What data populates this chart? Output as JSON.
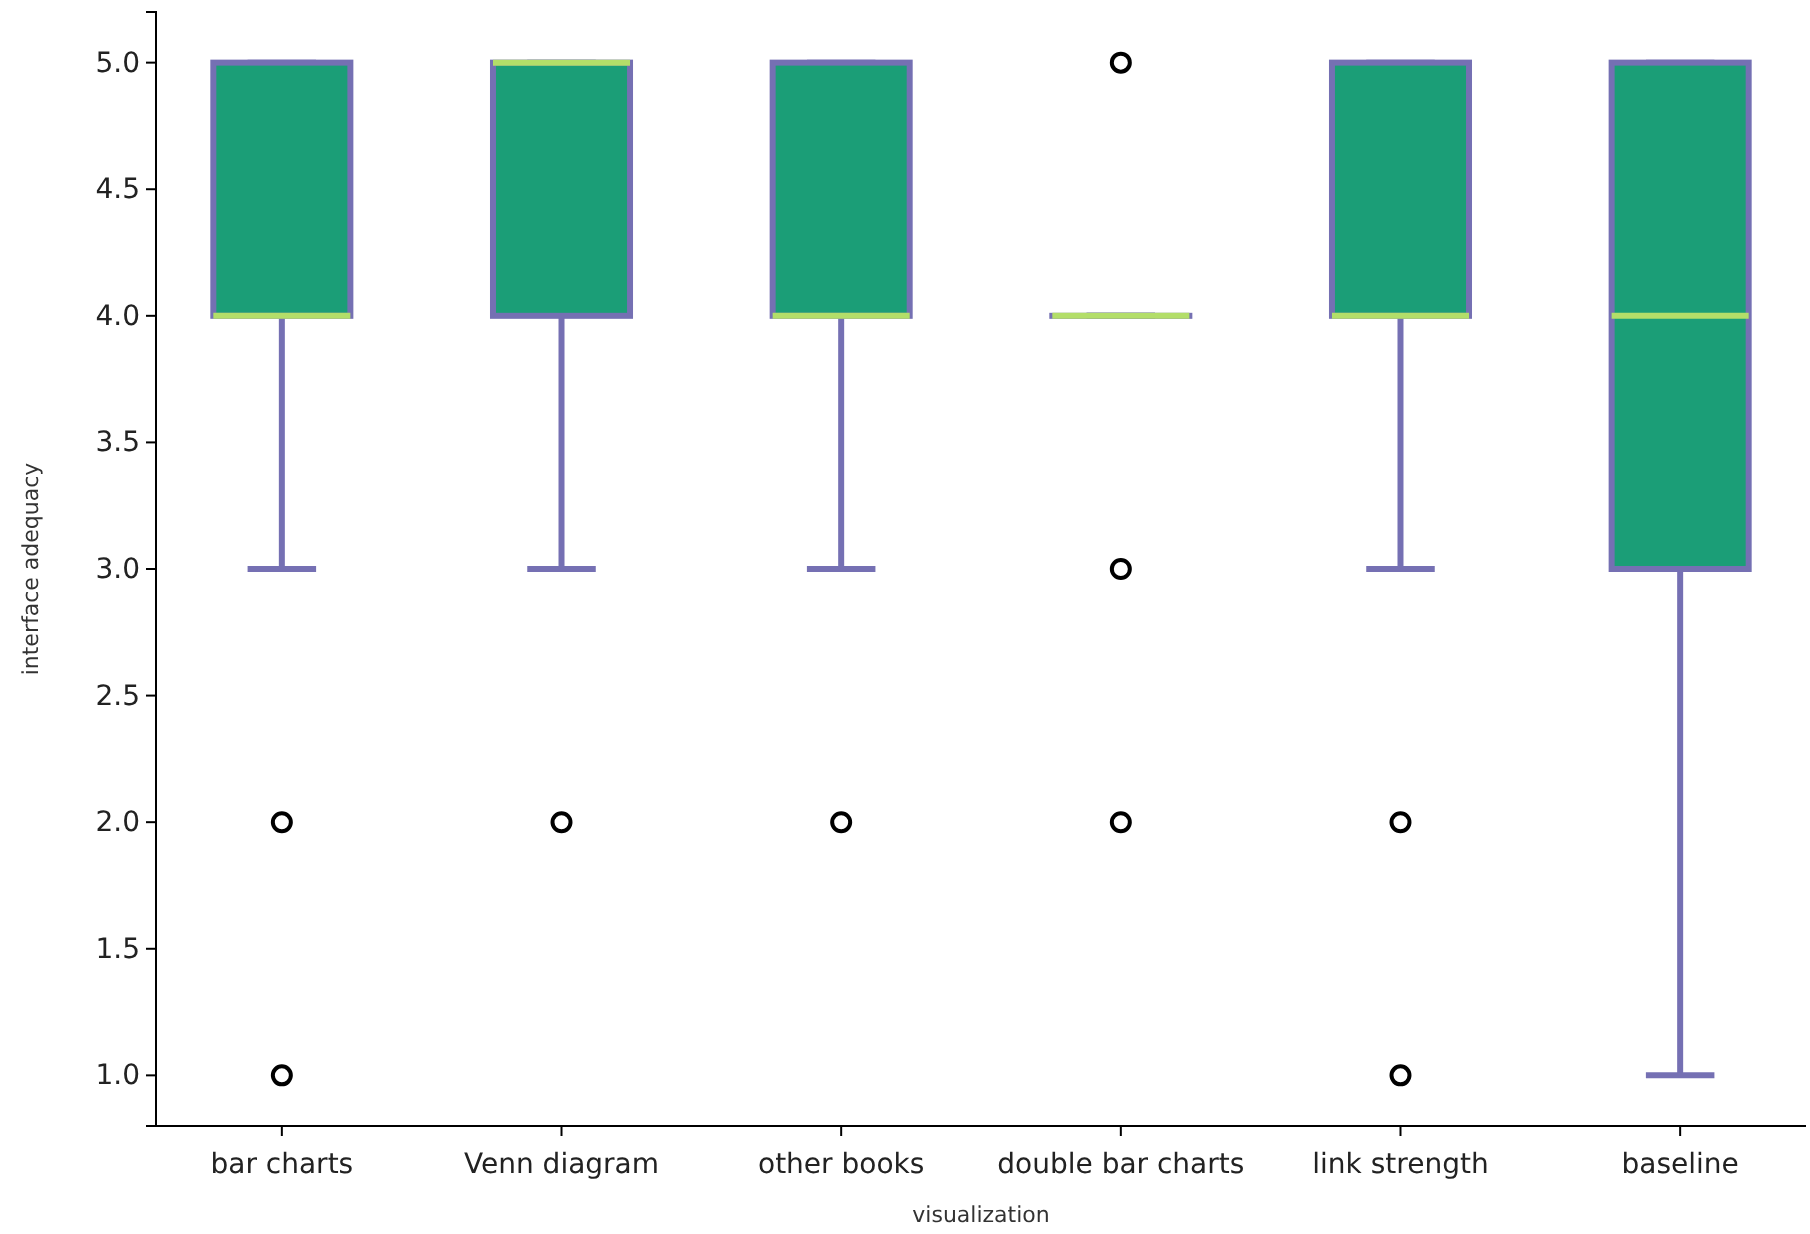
{
  "chart_data": {
    "type": "box",
    "xlabel": "visualization",
    "ylabel": "interface adequacy",
    "categories": [
      "bar charts",
      "Venn diagram",
      "other books",
      "double bar charts",
      "link strength",
      "baseline"
    ],
    "boxes": [
      {
        "low": 3,
        "q1": 4,
        "median": 4,
        "q3": 5,
        "high": 5,
        "outliers": [
          2,
          1
        ]
      },
      {
        "low": 3,
        "q1": 4,
        "median": 5,
        "q3": 5,
        "high": 5,
        "outliers": [
          2
        ]
      },
      {
        "low": 3,
        "q1": 4,
        "median": 4,
        "q3": 5,
        "high": 5,
        "outliers": [
          2
        ]
      },
      {
        "low": 4,
        "q1": 4,
        "median": 4,
        "q3": 4,
        "high": 4,
        "outliers": [
          5,
          3,
          2
        ]
      },
      {
        "low": 3,
        "q1": 4,
        "median": 4,
        "q3": 5,
        "high": 5,
        "outliers": [
          2,
          1
        ]
      },
      {
        "low": 1,
        "q1": 3,
        "median": 4,
        "q3": 5,
        "high": 5
      }
    ],
    "color": "#1b9e77",
    "ylim": [
      0.8,
      5.2
    ],
    "yticks": [
      {
        "value": 1,
        "label": "1.0"
      },
      {
        "value": 1.5,
        "label": "1.5"
      },
      {
        "value": 2,
        "label": "2.0"
      },
      {
        "value": 2.5,
        "label": "2.5"
      },
      {
        "value": 3,
        "label": "3.0"
      },
      {
        "value": 3.5,
        "label": "3.5"
      },
      {
        "value": 4,
        "label": "4.0"
      },
      {
        "value": 4.5,
        "label": "4.5"
      },
      {
        "value": 5,
        "label": "5.0"
      }
    ],
    "grid": false
  }
}
